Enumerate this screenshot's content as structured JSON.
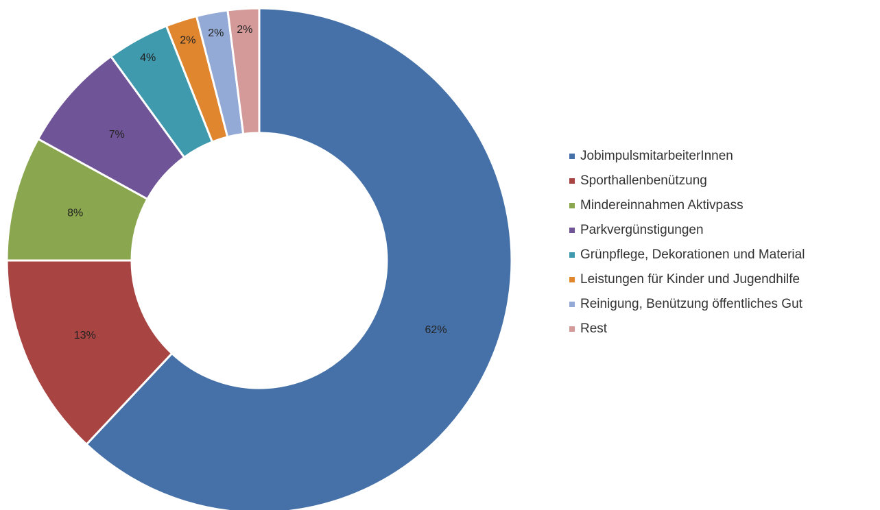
{
  "chart_data": {
    "type": "pie",
    "categories": [
      "JobimpulsmitarbeiterInnen",
      "Sporthallenbenützung",
      "Mindereinnahmen Aktivpass",
      "Parkvergünstigungen",
      "Grünpflege, Dekorationen und Material",
      "Leistungen für Kinder und Jugendhilfe",
      "Reinigung, Benützung öffentliches Gut",
      "Rest"
    ],
    "values": [
      62,
      13,
      8,
      7,
      4,
      2,
      2,
      2
    ],
    "value_labels": [
      "62%",
      "13%",
      "8%",
      "7%",
      "4%",
      "2%",
      "2%",
      "2%"
    ],
    "colors": [
      "#4571a8",
      "#a84442",
      "#8aa64e",
      "#6f5497",
      "#3f9aae",
      "#e0862f",
      "#94aad6",
      "#d49a9a"
    ],
    "legend": "right"
  }
}
